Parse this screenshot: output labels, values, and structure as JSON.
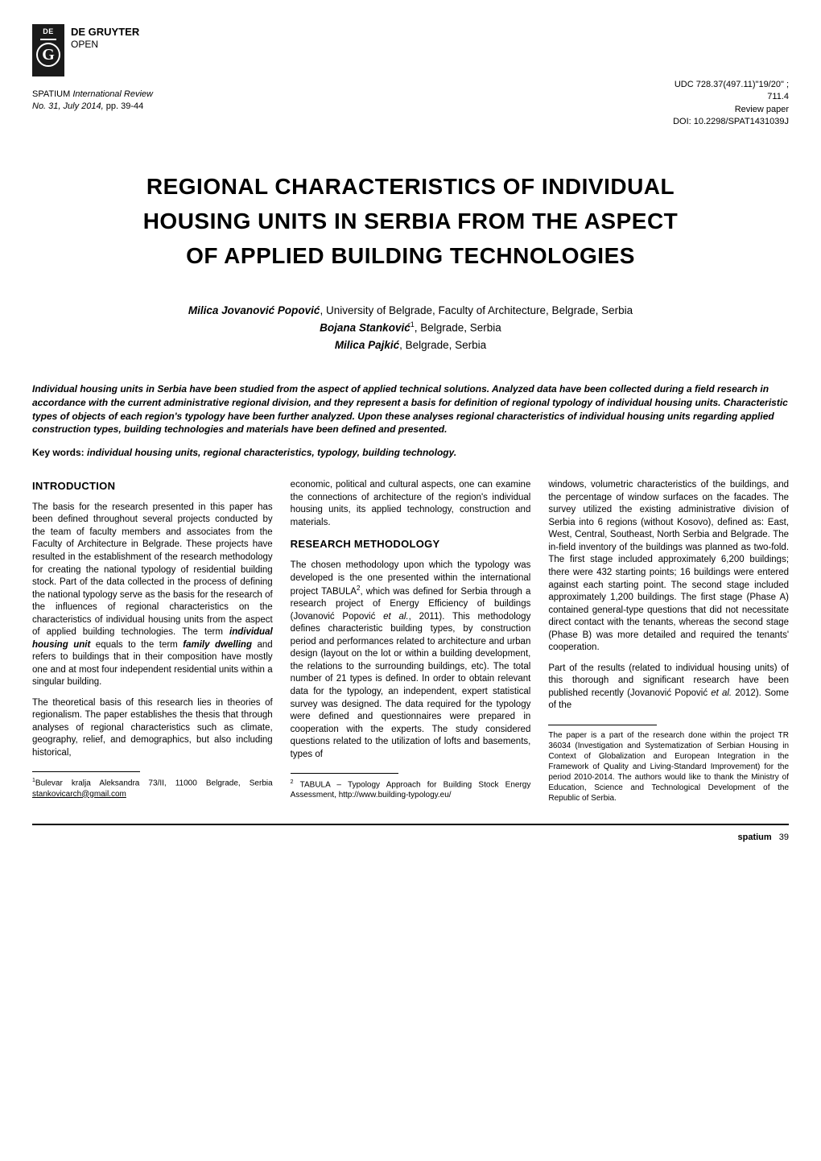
{
  "publisher": {
    "logo_de": "DE",
    "logo_g": "G",
    "name_line1": "DE GRUYTER",
    "name_line2": "OPEN"
  },
  "pubmeta": {
    "journal": "SPATIUM International Review",
    "issue": "No. 31, July 2014,",
    "pages": "pp. 39-44"
  },
  "rightmeta": {
    "udc1": "UDC 728.37(497.11)\"19/20\" ;",
    "udc2": "711.4",
    "type": "Review paper",
    "doi": "DOI: 10.2298/SPAT1431039J"
  },
  "title": {
    "line1": "REGIONAL CHARACTERISTICS OF INDIVIDUAL",
    "line2": "HOUSING UNITS IN SERBIA FROM THE ASPECT",
    "line3": "OF APPLIED BUILDING TECHNOLOGIES"
  },
  "authors": {
    "a1_name": "Milica Jovanović Popović",
    "a1_affil": ", University of Belgrade, Faculty of Architecture, Belgrade, Serbia",
    "a2_name": "Bojana Stanković",
    "a2_sup": "1",
    "a2_affil": ", Belgrade, Serbia",
    "a3_name": "Milica Pajkić",
    "a3_affil": ", Belgrade, Serbia"
  },
  "abstract": "Individual housing units in Serbia have been studied from the aspect of applied technical solutions. Analyzed data have been collected during a field research in accordance with the current administrative regional division, and they represent a basis for definition of regional typology of individual housing units. Characteristic types of objects of each region's typology have been further analyzed. Upon these analyses regional characteristics of individual housing units regarding applied construction types, building technologies and materials have been defined and presented.",
  "keywords": {
    "label": "Key words:",
    "text": " individual housing units, regional characteristics, typology, building technology."
  },
  "sections": {
    "intro_heading": "INTRODUCTION",
    "method_heading": "RESEARCH METHODOLOGY"
  },
  "col1": {
    "p1a": "The basis for the research presented in this paper has been defined throughout several projects conducted by the team of faculty members and associates from the Faculty of Architecture in Belgrade. These projects have resulted in the establishment of the research methodology for creating the national typology of residential building stock. Part of the data collected in the process of defining the national typology serve as the basis for the research of the influences of regional characteristics on the characteristics of individual housing units from the aspect of applied building technologies. The term ",
    "p1_em1": "individual housing unit",
    "p1b": " equals to the term ",
    "p1_em2": "family dwelling",
    "p1c": " and refers to buildings that in their composition have mostly one and at most four independent residential units within a singular building.",
    "p2": "The theoretical basis of this research lies in theories of regionalism. The paper establishes the thesis that through analyses of regional characteristics such as climate, geography, relief, and demographics, but also including historical,",
    "fn_sup": "1",
    "fn_text": "Bulevar kralja Aleksandra 73/II, 11000 Belgrade, Serbia ",
    "fn_email": "stankovicarch@gmail.com"
  },
  "col2": {
    "p0": "economic, political and cultural aspects, one can examine the connections of architecture of the region's individual housing units, its applied technology, construction and materials.",
    "p1a": "The chosen methodology upon which the typology was developed is the one presented within the international project TABULA",
    "p1_sup": "2",
    "p1b": ", which was defined for Serbia through a research project of Energy Efficiency of buildings (Jovanović Popović ",
    "p1_em": "et al.",
    "p1c": ", 2011). This methodology defines characteristic building types, by construction period and per­formances related to architecture and urban design (layout on the lot or within a building development, the relations to the surrounding buildings, etc). The total number of 21 types is defined. In order to obtain relevant data for the typology, an independent, expert statistical survey was designed. The data required for the typology were defined and questionnaires were prepared in cooperation with the experts. The study considered questions related to the utilization of lofts and basements, types of",
    "fn_sup": "2",
    "fn_text": " TABULA – Typology Approach for Building Stock Energy Assessment, http://www.building-typology.eu/"
  },
  "col3": {
    "p1": "windows, volumetric characteristics of the buildings, and the percentage of window surfaces on the facades. The survey utilized the existing administrative division of Serbia into 6 regions (without Kosovo), defined as: East, West, Central, Southeast, North Serbia and Belgrade. The in-field inventory of the buildings was planned as two-fold. The first stage included approximately 6,200 buildings; there were 432 starting points; 16 buildings were entered against each starting point. The second stage included approximately 1,200 buildings. The first stage (Phase A) contained general-type questions that did not necessitate direct contact with the tenants, whereas the second stage (Phase B) was more detailed and required the tenants' cooperation.",
    "p2a": "Part of the results (related to individual housing units) of this thorough and significant research have been published recently (Jovanović Popović ",
    "p2_em": "et al.",
    "p2b": " 2012). Some of the",
    "fn": "The paper is a part of the research done within the project TR 36034 (Investigation and Systematization of Serbian Housing in Context of Globalization and European Integration in the Framework of Quality and Living-Standard Improvement) for the period 2010-2014. The authors would like to thank the Ministry of Education, Science and Technological Development of the Republic of Serbia."
  },
  "footer": {
    "label": "spatium",
    "page": "39"
  }
}
